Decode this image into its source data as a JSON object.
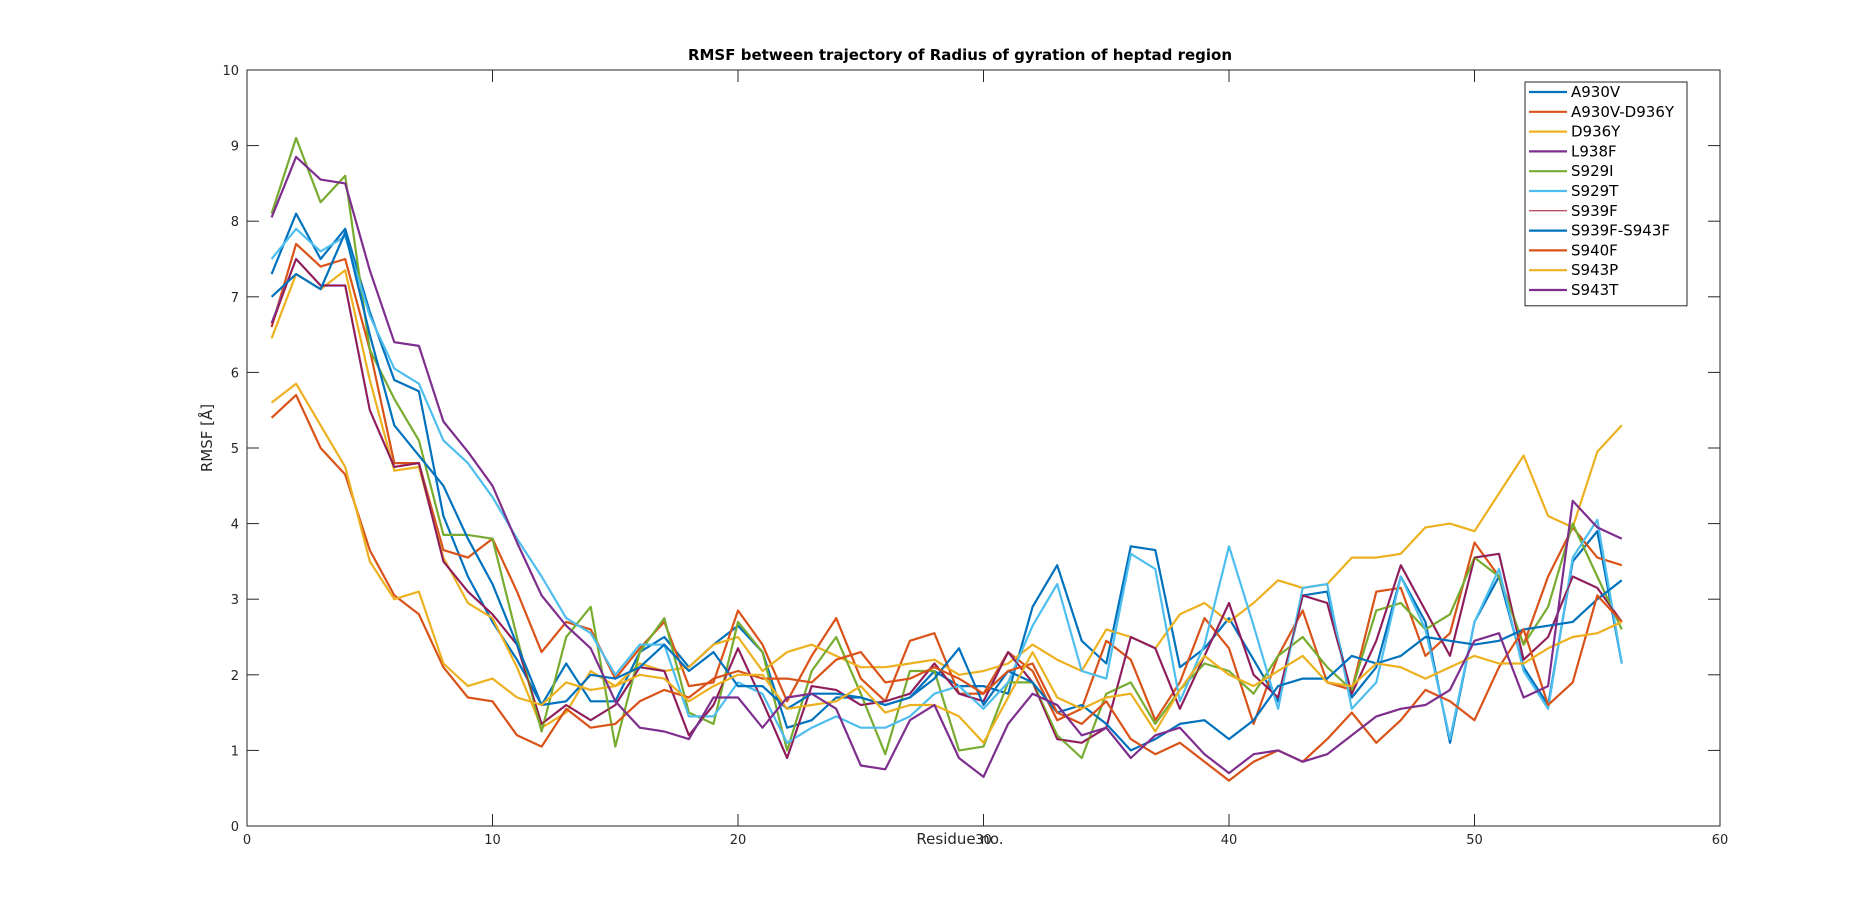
{
  "chart_data": {
    "type": "line",
    "title": "RMSF between trajectory of Radius of gyration of heptad region",
    "xlabel": "Residue no.",
    "ylabel": "RMSF [Å]",
    "xlim": [
      0,
      60
    ],
    "ylim": [
      0,
      10
    ],
    "xticks": [
      0,
      10,
      20,
      30,
      40,
      50,
      60
    ],
    "yticks": [
      0,
      1,
      2,
      3,
      4,
      5,
      6,
      7,
      8,
      9,
      10
    ],
    "grid": false,
    "legend_position": "top-right",
    "x": [
      1,
      2,
      3,
      4,
      5,
      6,
      7,
      8,
      9,
      10,
      11,
      12,
      13,
      14,
      15,
      16,
      17,
      18,
      19,
      20,
      21,
      22,
      23,
      24,
      25,
      26,
      27,
      28,
      29,
      30,
      31,
      32,
      33,
      34,
      35,
      36,
      37,
      38,
      39,
      40,
      41,
      42,
      43,
      44,
      45,
      46,
      47,
      48,
      49,
      50,
      51,
      52,
      53,
      54,
      55,
      56
    ],
    "series": [
      {
        "name": "A930V",
        "color": "#0072BD",
        "values": [
          7.3,
          8.1,
          7.5,
          7.9,
          6.8,
          5.9,
          5.75,
          4.1,
          3.3,
          2.7,
          2.2,
          1.6,
          2.15,
          1.65,
          1.65,
          2.3,
          2.5,
          2.1,
          2.4,
          2.65,
          2.3,
          1.3,
          1.4,
          1.7,
          1.7,
          1.6,
          1.7,
          2.05,
          1.85,
          1.85,
          1.75,
          2.9,
          3.45,
          2.45,
          2.15,
          3.7,
          3.65,
          2.1,
          2.35,
          2.75,
          2.2,
          1.65,
          3.05,
          3.1,
          1.7,
          2.1,
          3.3,
          2.7,
          1.1,
          2.7,
          3.3,
          2.1,
          1.6,
          3.5,
          3.9,
          2.15
        ]
      },
      {
        "name": "A930V-D936Y",
        "color": "#D95319",
        "values": [
          6.6,
          7.7,
          7.4,
          7.5,
          6.3,
          4.8,
          4.8,
          3.65,
          3.55,
          3.8,
          3.1,
          2.3,
          2.7,
          2.6,
          1.95,
          2.35,
          2.7,
          1.85,
          1.9,
          2.85,
          2.4,
          1.65,
          2.25,
          2.75,
          1.95,
          1.65,
          2.45,
          2.55,
          1.75,
          1.75,
          2.3,
          2.05,
          1.4,
          1.55,
          2.45,
          2.2,
          1.4,
          1.9,
          2.75,
          2.35,
          1.35,
          2.25,
          2.85,
          1.9,
          1.8,
          3.1,
          3.15,
          2.25,
          2.55,
          3.75,
          3.3,
          2.4,
          3.3,
          3.95,
          3.55,
          3.45
        ]
      },
      {
        "name": "D936Y",
        "color": "#EDB120",
        "values": [
          6.45,
          7.3,
          7.1,
          7.35,
          5.9,
          4.7,
          4.75,
          3.55,
          2.95,
          2.75,
          2.1,
          1.3,
          1.5,
          2.05,
          1.85,
          2.15,
          2.05,
          2.1,
          2.4,
          2.5,
          2.05,
          2.3,
          2.4,
          2.25,
          2.1,
          2.1,
          2.15,
          2.2,
          2.0,
          2.05,
          2.15,
          2.4,
          2.2,
          2.05,
          2.6,
          2.5,
          2.35,
          2.8,
          2.95,
          2.7,
          2.95,
          3.25,
          3.15,
          3.2,
          3.55,
          3.55,
          3.6,
          3.95,
          4.0,
          3.9,
          4.4,
          4.9,
          4.1,
          3.95,
          4.95,
          5.3
        ]
      },
      {
        "name": "L938F",
        "color": "#7E2F8E",
        "values": [
          6.65,
          7.5,
          7.15,
          7.15,
          5.5,
          4.75,
          4.8,
          3.5,
          3.1,
          2.8,
          2.4,
          1.35,
          1.6,
          1.4,
          1.6,
          2.1,
          2.05,
          1.2,
          1.6,
          2.35,
          1.65,
          0.9,
          1.85,
          1.8,
          1.6,
          1.65,
          1.75,
          2.15,
          1.75,
          1.65,
          2.3,
          1.9,
          1.15,
          1.1,
          1.3,
          2.5,
          2.35,
          1.55,
          2.25,
          2.95,
          2.0,
          1.7,
          3.05,
          2.95,
          1.75,
          2.45,
          3.45,
          2.85,
          2.25,
          3.55,
          3.6,
          2.2,
          2.5,
          3.3,
          3.15,
          2.7
        ]
      },
      {
        "name": "S929I",
        "color": "#77AC30",
        "values": [
          8.1,
          9.1,
          8.25,
          8.6,
          6.3,
          5.65,
          5.1,
          3.85,
          3.85,
          3.8,
          2.5,
          1.25,
          2.5,
          2.9,
          1.05,
          2.3,
          2.75,
          1.5,
          1.35,
          2.7,
          2.3,
          1.0,
          2.05,
          2.5,
          1.75,
          0.95,
          2.05,
          2.05,
          1.0,
          1.05,
          1.9,
          1.9,
          1.2,
          0.9,
          1.75,
          1.9,
          1.35,
          1.8,
          2.15,
          2.05,
          1.75,
          2.25,
          2.5,
          2.1,
          1.8,
          2.85,
          2.95,
          2.6,
          2.8,
          3.55,
          3.3,
          2.4,
          2.9,
          4.0,
          3.3,
          2.6
        ]
      },
      {
        "name": "S929T",
        "color": "#4DBEEE",
        "values": [
          7.5,
          7.9,
          7.6,
          7.8,
          6.75,
          6.05,
          5.85,
          5.1,
          4.8,
          4.35,
          3.8,
          3.3,
          2.75,
          2.55,
          2.0,
          2.4,
          2.4,
          1.45,
          1.45,
          1.9,
          1.75,
          1.1,
          1.3,
          1.45,
          1.3,
          1.3,
          1.45,
          1.75,
          1.85,
          1.55,
          1.9,
          2.65,
          3.2,
          2.05,
          1.95,
          3.6,
          3.4,
          1.65,
          2.4,
          3.7,
          2.65,
          1.55,
          3.15,
          3.2,
          1.55,
          1.9,
          3.3,
          2.6,
          1.15,
          2.7,
          3.4,
          2.05,
          1.55,
          3.55,
          4.05,
          2.15
        ]
      },
      {
        "name": "S939F",
        "color": "#A2142F",
        "values": [
          6.6,
          7.5,
          7.15,
          7.15,
          5.5,
          4.75,
          4.8,
          3.5,
          3.1,
          2.8,
          2.4,
          1.35,
          1.6,
          1.4,
          1.6,
          2.1,
          2.05,
          1.2,
          1.6,
          2.35,
          1.65,
          0.9,
          1.85,
          1.8,
          1.6,
          1.65,
          1.75,
          2.15,
          1.75,
          1.65,
          2.3,
          1.9,
          1.15,
          1.1,
          1.3,
          2.5,
          2.35,
          1.55,
          2.25,
          2.95,
          2.0,
          1.7,
          3.05,
          2.95,
          1.75,
          2.45,
          3.45,
          2.85,
          2.25,
          3.55,
          3.6,
          2.2,
          2.5,
          3.3,
          3.15,
          2.7
        ]
      },
      {
        "name": "S939F-S943F",
        "color": "#0072BD",
        "values": [
          7.0,
          7.3,
          7.1,
          7.85,
          6.5,
          5.3,
          4.9,
          4.5,
          3.8,
          3.2,
          2.4,
          1.6,
          1.65,
          2.0,
          1.95,
          2.1,
          2.4,
          2.05,
          2.3,
          1.85,
          1.85,
          1.55,
          1.75,
          1.75,
          1.7,
          1.6,
          1.7,
          1.95,
          2.35,
          1.6,
          2.05,
          1.9,
          1.5,
          1.6,
          1.35,
          1.0,
          1.15,
          1.35,
          1.4,
          1.15,
          1.4,
          1.85,
          1.95,
          1.95,
          2.25,
          2.15,
          2.25,
          2.5,
          2.45,
          2.4,
          2.45,
          2.6,
          2.65,
          2.7,
          3.0,
          3.25
        ]
      },
      {
        "name": "S940F",
        "color": "#D95319",
        "values": [
          5.4,
          5.7,
          5.0,
          4.65,
          3.65,
          3.05,
          2.8,
          2.1,
          1.7,
          1.65,
          1.2,
          1.05,
          1.55,
          1.3,
          1.35,
          1.65,
          1.8,
          1.7,
          1.95,
          2.05,
          1.95,
          1.95,
          1.9,
          2.2,
          2.3,
          1.9,
          1.95,
          2.1,
          1.95,
          1.75,
          2.05,
          2.15,
          1.5,
          1.35,
          1.65,
          1.15,
          0.95,
          1.1,
          0.85,
          0.6,
          0.85,
          1.0,
          0.85,
          1.15,
          1.5,
          1.1,
          1.4,
          1.8,
          1.65,
          1.4,
          2.1,
          2.6,
          1.6,
          1.9,
          3.05,
          2.7
        ]
      },
      {
        "name": "S943P",
        "color": "#EDB120",
        "values": [
          5.6,
          5.85,
          5.3,
          4.75,
          3.5,
          3.0,
          3.1,
          2.15,
          1.85,
          1.95,
          1.7,
          1.6,
          1.9,
          1.8,
          1.85,
          2.0,
          1.95,
          1.65,
          1.85,
          2.0,
          2.0,
          1.55,
          1.6,
          1.65,
          1.85,
          1.5,
          1.6,
          1.6,
          1.45,
          1.1,
          1.7,
          2.3,
          1.7,
          1.55,
          1.7,
          1.75,
          1.25,
          1.8,
          2.25,
          2.0,
          1.85,
          2.05,
          2.25,
          1.9,
          1.85,
          2.15,
          2.1,
          1.95,
          2.1,
          2.25,
          2.15,
          2.15,
          2.35,
          2.5,
          2.55,
          2.7
        ]
      },
      {
        "name": "S943T",
        "color": "#7E2F8E",
        "values": [
          8.05,
          8.85,
          8.55,
          8.5,
          7.35,
          6.4,
          6.35,
          5.35,
          4.95,
          4.5,
          3.75,
          3.05,
          2.65,
          2.35,
          1.65,
          1.3,
          1.25,
          1.15,
          1.7,
          1.7,
          1.3,
          1.7,
          1.75,
          1.55,
          0.8,
          0.75,
          1.4,
          1.6,
          0.9,
          0.65,
          1.35,
          1.75,
          1.6,
          1.2,
          1.3,
          0.9,
          1.2,
          1.3,
          0.95,
          0.7,
          0.95,
          1.0,
          0.85,
          0.95,
          1.2,
          1.45,
          1.55,
          1.6,
          1.8,
          2.45,
          2.55,
          1.7,
          1.85,
          4.3,
          3.95,
          3.8
        ]
      }
    ]
  }
}
